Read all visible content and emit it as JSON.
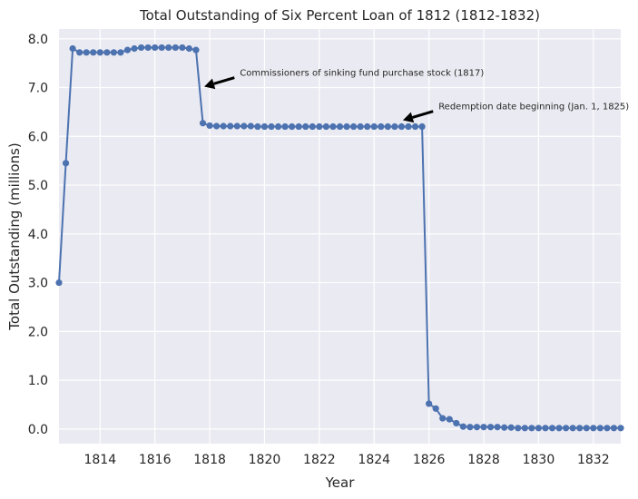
{
  "chart_data": {
    "type": "line",
    "title": "Total Outstanding of Six Percent Loan of 1812 (1812-1832)",
    "xlabel": "Year",
    "ylabel": "Total Outstanding (millions)",
    "xlim": [
      1812.5,
      1833.0
    ],
    "ylim": [
      -0.3,
      8.2
    ],
    "xticks": [
      1814,
      1816,
      1818,
      1820,
      1822,
      1824,
      1826,
      1828,
      1830,
      1832
    ],
    "yticks": [
      0.0,
      1.0,
      2.0,
      3.0,
      4.0,
      5.0,
      6.0,
      7.0,
      8.0
    ],
    "grid": true,
    "series": [
      {
        "name": "Total Outstanding",
        "color": "#4c72b0",
        "x": [
          1812.5,
          1812.75,
          1813.0,
          1813.25,
          1813.5,
          1813.75,
          1814.0,
          1814.25,
          1814.5,
          1814.75,
          1815.0,
          1815.25,
          1815.5,
          1815.75,
          1816.0,
          1816.25,
          1816.5,
          1816.75,
          1817.0,
          1817.25,
          1817.5,
          1817.75,
          1818.0,
          1818.25,
          1818.5,
          1818.75,
          1819.0,
          1819.25,
          1819.5,
          1819.75,
          1820.0,
          1820.25,
          1820.5,
          1820.75,
          1821.0,
          1821.25,
          1821.5,
          1821.75,
          1822.0,
          1822.25,
          1822.5,
          1822.75,
          1823.0,
          1823.25,
          1823.5,
          1823.75,
          1824.0,
          1824.25,
          1824.5,
          1824.75,
          1825.0,
          1825.25,
          1825.5,
          1825.75,
          1826.0,
          1826.25,
          1826.5,
          1826.75,
          1827.0,
          1827.25,
          1827.5,
          1827.75,
          1828.0,
          1828.25,
          1828.5,
          1828.75,
          1829.0,
          1829.25,
          1829.5,
          1829.75,
          1830.0,
          1830.25,
          1830.5,
          1830.75,
          1831.0,
          1831.25,
          1831.5,
          1831.75,
          1832.0,
          1832.25,
          1832.5,
          1832.75,
          1833.0
        ],
        "y": [
          3.0,
          5.45,
          7.8,
          7.72,
          7.72,
          7.72,
          7.72,
          7.72,
          7.72,
          7.72,
          7.77,
          7.8,
          7.82,
          7.82,
          7.82,
          7.82,
          7.82,
          7.82,
          7.82,
          7.8,
          7.77,
          6.27,
          6.22,
          6.21,
          6.21,
          6.21,
          6.21,
          6.21,
          6.21,
          6.2,
          6.2,
          6.2,
          6.2,
          6.2,
          6.2,
          6.2,
          6.2,
          6.2,
          6.2,
          6.2,
          6.2,
          6.2,
          6.2,
          6.2,
          6.2,
          6.2,
          6.2,
          6.2,
          6.2,
          6.2,
          6.2,
          6.2,
          6.2,
          6.2,
          0.52,
          0.42,
          0.22,
          0.2,
          0.12,
          0.05,
          0.04,
          0.04,
          0.04,
          0.04,
          0.04,
          0.03,
          0.03,
          0.02,
          0.02,
          0.02,
          0.02,
          0.02,
          0.02,
          0.02,
          0.02,
          0.02,
          0.02,
          0.02,
          0.02,
          0.02,
          0.02,
          0.02,
          0.02
        ]
      }
    ],
    "annotations": [
      {
        "text": "Commissioners of sinking fund purchase stock (1817)",
        "xy": [
          1817.8,
          7.02
        ],
        "xytext": [
          1819.1,
          7.24
        ]
      },
      {
        "text": "Redemption date beginning (Jan. 1, 1825)",
        "xy": [
          1825.05,
          6.33
        ],
        "xytext": [
          1826.35,
          6.55
        ]
      }
    ]
  }
}
